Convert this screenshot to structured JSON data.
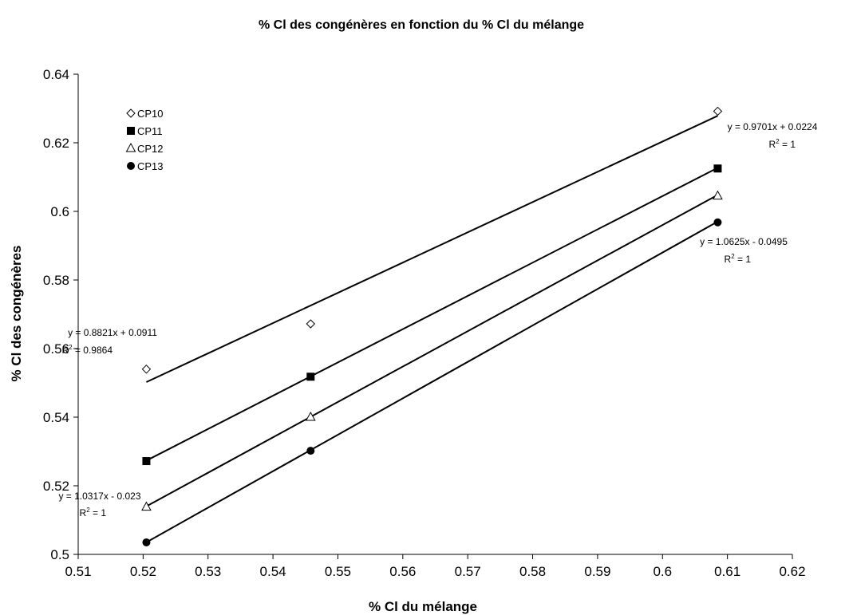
{
  "chart_data": {
    "type": "scatter",
    "title": "% Cl des congénères en fonction du % Cl du mélange",
    "xlabel": "% Cl du mélange",
    "ylabel": "% Cl des congénères",
    "xlim": [
      0.51,
      0.62
    ],
    "ylim": [
      0.5,
      0.64
    ],
    "xticks": [
      "0.51",
      "0.52",
      "0.53",
      "0.54",
      "0.55",
      "0.56",
      "0.57",
      "0.58",
      "0.59",
      "0.6",
      "0.61",
      "0.62"
    ],
    "yticks": [
      "0.5",
      "0.52",
      "0.54",
      "0.56",
      "0.58",
      "0.6",
      "0.62",
      "0.64"
    ],
    "grid": false,
    "legend_position": "top-left",
    "series": [
      {
        "name": "CP10",
        "marker": "diamond-open",
        "x": [
          0.5205,
          0.5458,
          0.6085
        ],
        "y": [
          0.554,
          0.5672,
          0.6292
        ],
        "trendline": {
          "equation": "y = 0.8821x + 0.0911",
          "r2_label": "R",
          "r2_value": " = 0.9864",
          "slope": 0.8821,
          "intercept": 0.0911,
          "label_anchor": "left"
        }
      },
      {
        "name": "CP11",
        "marker": "square-filled",
        "x": [
          0.5205,
          0.5458,
          0.6085
        ],
        "y": [
          0.5272,
          0.5518,
          0.6125
        ],
        "trendline": {
          "equation": "y = 0.9701x + 0.0224",
          "r2_label": "R",
          "r2_value": " = 1",
          "slope": 0.9701,
          "intercept": 0.0224,
          "label_anchor": "right-top"
        }
      },
      {
        "name": "CP12",
        "marker": "triangle-open",
        "x": [
          0.5205,
          0.5458,
          0.6085
        ],
        "y": [
          0.5138,
          0.54,
          0.6045
        ],
        "trendline": {
          "equation": "y = 1.0317x - 0.023",
          "r2_label": "R",
          "r2_value": " = 1",
          "slope": 1.0317,
          "intercept": -0.023,
          "label_anchor": "left-bottom"
        }
      },
      {
        "name": "CP13",
        "marker": "circle-filled",
        "x": [
          0.5205,
          0.5458,
          0.6085
        ],
        "y": [
          0.5035,
          0.5302,
          0.5968
        ],
        "trendline": {
          "equation": "y = 1.0625x - 0.0495",
          "r2_label": "R",
          "r2_value": " = 1",
          "slope": 1.0625,
          "intercept": -0.0495,
          "label_anchor": "right-mid"
        }
      }
    ]
  }
}
